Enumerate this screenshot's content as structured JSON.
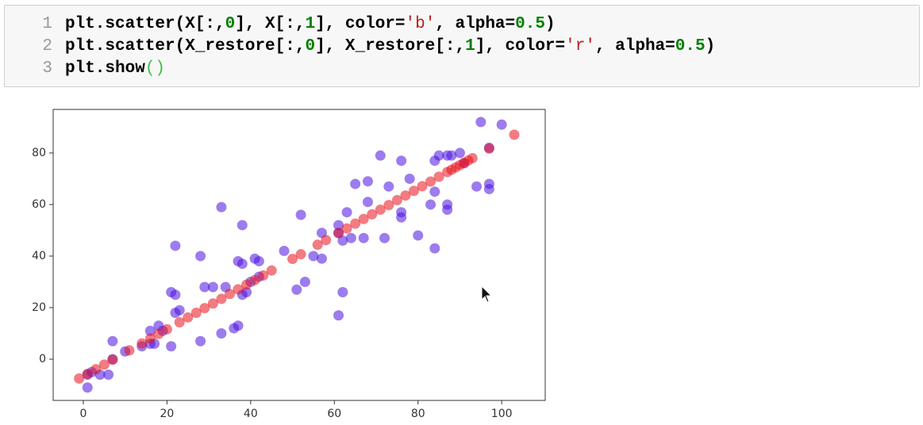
{
  "code": {
    "lines": [
      {
        "number": 1,
        "text": "plt.scatter(X[:,0], X[:,1], color='b', alpha=0.5)"
      },
      {
        "number": 2,
        "text": "plt.scatter(X_restore[:,0], X_restore[:,1], color='r', alpha=0.5)"
      },
      {
        "number": 3,
        "text": "plt.show()"
      }
    ]
  },
  "chart_data": {
    "type": "scatter",
    "xlim": [
      -7.2,
      110.4
    ],
    "ylim": [
      -16,
      96.9
    ],
    "xticks": [
      0,
      20,
      40,
      60,
      80,
      100
    ],
    "yticks": [
      0,
      20,
      40,
      60,
      80
    ],
    "series": [
      {
        "color": "#4a10e0",
        "x": [
          95,
          100,
          97,
          97,
          97,
          94,
          91,
          90,
          88,
          87,
          85,
          84,
          87,
          87,
          84,
          83,
          84,
          80,
          78,
          76,
          71,
          73,
          76,
          76,
          72,
          67,
          68,
          65,
          68,
          63,
          61,
          61,
          62,
          64,
          57,
          55,
          57,
          52,
          53,
          51,
          61,
          62,
          48,
          42,
          41,
          42,
          40,
          38,
          37,
          38,
          33,
          39,
          38,
          37,
          36,
          34,
          33,
          31,
          29,
          28,
          28,
          22,
          22,
          21,
          22,
          23,
          18,
          19,
          21,
          16,
          16,
          17,
          14,
          10,
          7,
          6,
          4,
          1,
          1,
          2,
          7
        ],
        "values": [
          92,
          91,
          82,
          68,
          66,
          67,
          76,
          80,
          79,
          79,
          79,
          77,
          60,
          58,
          65,
          60,
          43,
          48,
          70,
          77,
          79,
          67,
          57,
          55,
          47,
          47,
          69,
          68,
          61,
          57,
          52,
          49,
          46,
          47,
          49,
          40,
          39,
          56,
          30,
          27,
          17,
          26,
          42,
          38,
          39,
          32,
          30,
          37,
          38,
          52,
          59,
          26,
          25,
          13,
          12,
          28,
          10,
          28,
          28,
          40,
          7,
          44,
          25,
          26,
          18,
          19,
          13,
          11,
          5,
          11,
          6,
          6,
          5,
          3,
          7,
          -6,
          -6,
          -6,
          -11,
          -5,
          0
        ]
      },
      {
        "color": "#e8101a",
        "x": [
          -1,
          1,
          3,
          5,
          7,
          11,
          14,
          16,
          18,
          20,
          23,
          25,
          27,
          29,
          31,
          33,
          35,
          37,
          39,
          41,
          43,
          45,
          50,
          52,
          56,
          58,
          61,
          63,
          65,
          67,
          69,
          71,
          73,
          75,
          77,
          79,
          81,
          83,
          85,
          87,
          88,
          89,
          90,
          91,
          92,
          93,
          97,
          103
        ],
        "values": [
          -7.5,
          -5.7,
          -3.9,
          -2.1,
          -0.2,
          3.4,
          6.1,
          8.0,
          9.8,
          11.6,
          14.3,
          16.2,
          18.0,
          19.8,
          21.6,
          23.4,
          25.3,
          27.1,
          28.9,
          30.7,
          32.5,
          34.4,
          38.9,
          40.7,
          44.4,
          46.2,
          48.9,
          50.7,
          52.6,
          54.4,
          56.2,
          58.0,
          59.8,
          61.7,
          63.5,
          65.3,
          67.1,
          68.9,
          70.8,
          72.6,
          73.5,
          74.4,
          75.3,
          76.2,
          77.1,
          78.0,
          81.7,
          87.1
        ]
      }
    ]
  }
}
